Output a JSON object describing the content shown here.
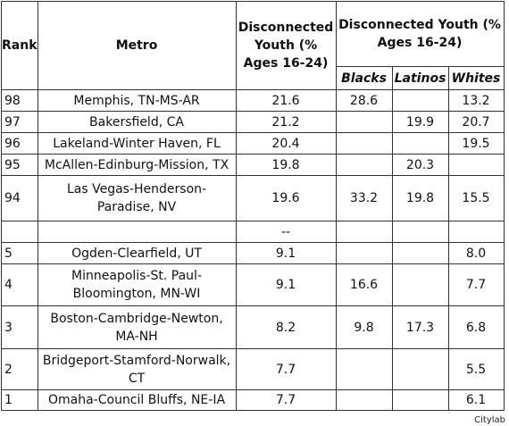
{
  "chart_data": {
    "type": "table",
    "headers": {
      "rank": "Rank",
      "metro": "Metro",
      "overall": "Disconnected Youth (% Ages 16-24)",
      "group": "Disconnected Youth (% Ages 16-24)",
      "blacks": "Blacks",
      "latinos": "Latinos",
      "whites": "Whites"
    },
    "rows": [
      {
        "rank": "98",
        "metro": "Memphis, TN-MS-AR",
        "overall": "21.6",
        "blacks": "28.6",
        "latinos": "",
        "whites": "13.2"
      },
      {
        "rank": "97",
        "metro": "Bakersfield, CA",
        "overall": "21.2",
        "blacks": "",
        "latinos": "19.9",
        "whites": "20.7"
      },
      {
        "rank": "96",
        "metro": "Lakeland-Winter Haven, FL",
        "overall": "20.4",
        "blacks": "",
        "latinos": "",
        "whites": "19.5"
      },
      {
        "rank": "95",
        "metro": "McAllen-Edinburg-Mission, TX",
        "overall": "19.8",
        "blacks": "",
        "latinos": "20.3",
        "whites": ""
      },
      {
        "rank": "94",
        "metro": "Las Vegas-Henderson-Paradise, NV",
        "overall": "19.6",
        "blacks": "33.2",
        "latinos": "19.8",
        "whites": "15.5"
      },
      {
        "rank": "",
        "metro": "",
        "overall": "--",
        "blacks": "",
        "latinos": "",
        "whites": ""
      },
      {
        "rank": "5",
        "metro": "Ogden-Clearfield, UT",
        "overall": "9.1",
        "blacks": "",
        "latinos": "",
        "whites": "8.0"
      },
      {
        "rank": "4",
        "metro": "Minneapolis-St. Paul-Bloomington, MN-WI",
        "overall": "9.1",
        "blacks": "16.6",
        "latinos": "",
        "whites": "7.7"
      },
      {
        "rank": "3",
        "metro": "Boston-Cambridge-Newton, MA-NH",
        "overall": "8.2",
        "blacks": "9.8",
        "latinos": "17.3",
        "whites": "6.8"
      },
      {
        "rank": "2",
        "metro": "Bridgeport-Stamford-Norwalk, CT",
        "overall": "7.7",
        "blacks": "",
        "latinos": "",
        "whites": "5.5"
      },
      {
        "rank": "1",
        "metro": "Omaha-Council Bluffs, NE-IA",
        "overall": "7.7",
        "blacks": "",
        "latinos": "",
        "whites": "6.1"
      }
    ]
  },
  "credit": "Citylab"
}
